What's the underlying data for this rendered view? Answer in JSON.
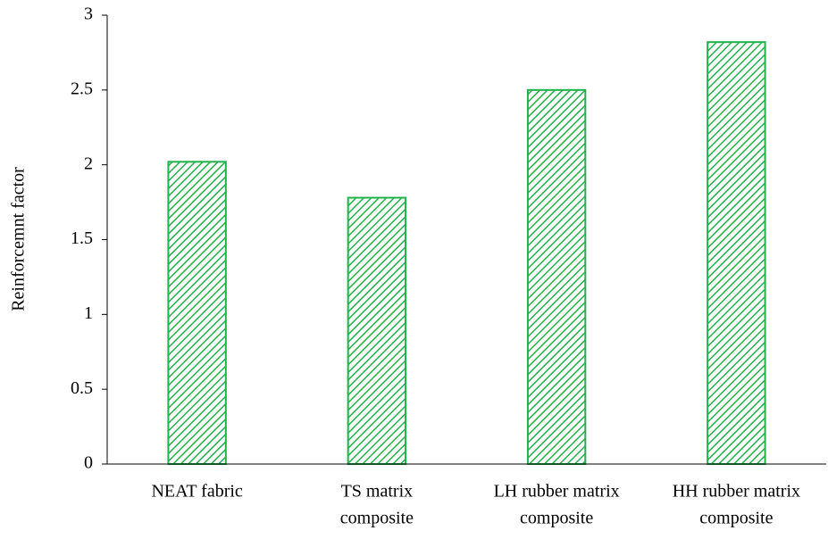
{
  "chart_data": {
    "type": "bar",
    "y_label": "Reinforcemnt factor",
    "categories": [
      [
        "NEAT fabric"
      ],
      [
        "TS matrix",
        "composite"
      ],
      [
        "LH rubber matrix",
        "composite"
      ],
      [
        "HH rubber matrix",
        "composite"
      ]
    ],
    "values": [
      2.02,
      1.78,
      2.5,
      2.82
    ],
    "color": "#22b04b",
    "hatch": true,
    "ylim": [
      0,
      3
    ],
    "yticks": [
      0,
      0.5,
      1,
      1.5,
      2,
      2.5,
      3
    ],
    "grid": false
  }
}
